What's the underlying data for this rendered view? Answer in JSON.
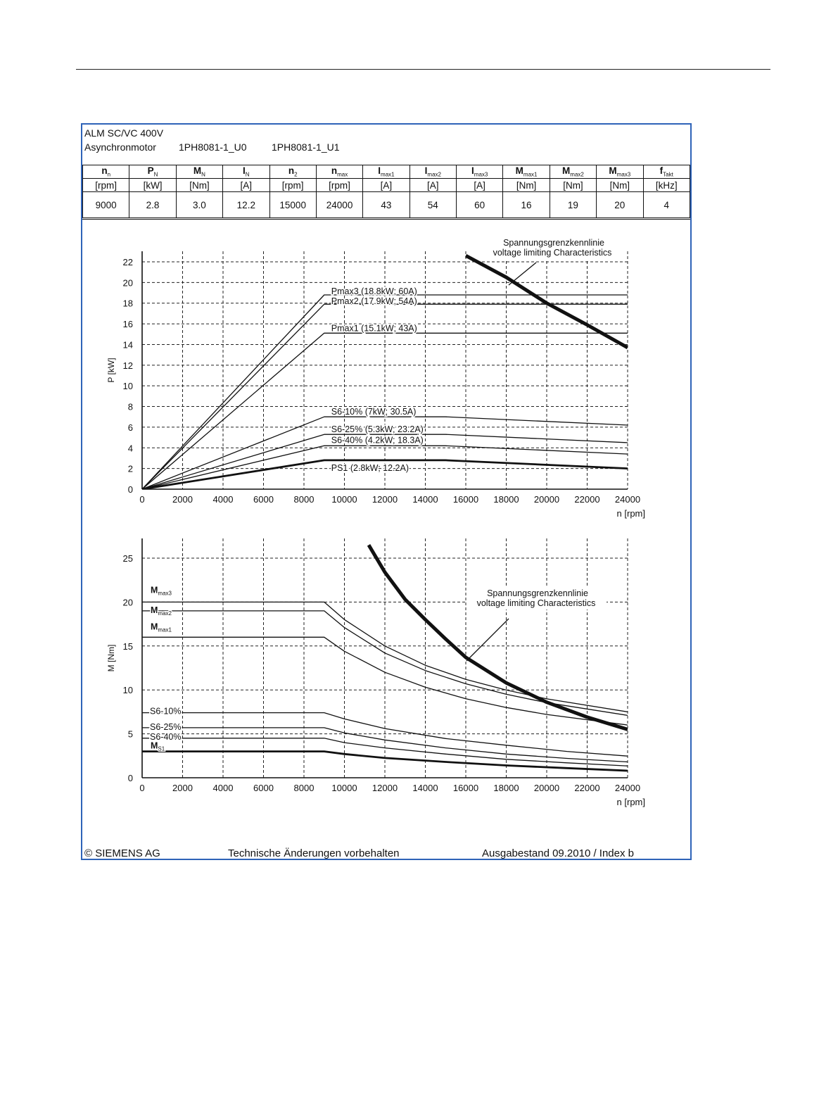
{
  "header": {
    "line1": "ALM SC/VC 400V",
    "motor_type": "Asynchronmotor",
    "model_a": "1PH8081-1_U0",
    "model_b": "1PH8081-1_U1"
  },
  "spec_table": {
    "columns": [
      {
        "sym": "n",
        "sub": "n",
        "unit": "[rpm]",
        "value": "9000"
      },
      {
        "sym": "P",
        "sub": "N",
        "unit": "[kW]",
        "value": "2.8"
      },
      {
        "sym": "M",
        "sub": "N",
        "unit": "[Nm]",
        "value": "3.0"
      },
      {
        "sym": "I",
        "sub": "N",
        "unit": "[A]",
        "value": "12.2"
      },
      {
        "sym": "n",
        "sub": "2",
        "unit": "[rpm]",
        "value": "15000"
      },
      {
        "sym": "n",
        "sub": "max",
        "unit": "[rpm]",
        "value": "24000"
      },
      {
        "sym": "I",
        "sub": "max1",
        "unit": "[A]",
        "value": "43"
      },
      {
        "sym": "I",
        "sub": "max2",
        "unit": "[A]",
        "value": "54"
      },
      {
        "sym": "I",
        "sub": "max3",
        "unit": "[A]",
        "value": "60"
      },
      {
        "sym": "M",
        "sub": "max1",
        "unit": "[Nm]",
        "value": "16"
      },
      {
        "sym": "M",
        "sub": "max2",
        "unit": "[Nm]",
        "value": "19"
      },
      {
        "sym": "M",
        "sub": "max3",
        "unit": "[Nm]",
        "value": "20"
      },
      {
        "sym": "f",
        "sub": "Takt",
        "unit": "[kHz]",
        "value": "4"
      }
    ]
  },
  "chart_data": [
    {
      "type": "line",
      "xlabel": "n [rpm]",
      "ylabel": "P [kW]",
      "xlim": [
        0,
        24000
      ],
      "ylim": [
        0,
        22
      ],
      "x_ticks": [
        0,
        2000,
        4000,
        6000,
        8000,
        10000,
        12000,
        14000,
        16000,
        18000,
        20000,
        22000,
        24000
      ],
      "y_ticks": [
        0,
        2,
        4,
        6,
        8,
        10,
        12,
        14,
        16,
        18,
        20,
        22
      ],
      "grid": true,
      "callout": {
        "line1": "Spannungsgrenzkennlinie",
        "line2": "voltage limiting  Characteristics"
      },
      "series": [
        {
          "name": "Pmax3  (18.8kW; 60A)",
          "weight": "thin",
          "points": [
            [
              0,
              0
            ],
            [
              9000,
              18.8
            ],
            [
              24000,
              18.8
            ]
          ]
        },
        {
          "name": "Pmax2  (17.9kW; 54A)",
          "weight": "thin",
          "points": [
            [
              0,
              0
            ],
            [
              9000,
              17.9
            ],
            [
              24000,
              17.9
            ]
          ]
        },
        {
          "name": "Pmax1  (15.1kW; 43A)",
          "weight": "thin",
          "points": [
            [
              0,
              0
            ],
            [
              9000,
              15.1
            ],
            [
              24000,
              15.1
            ]
          ]
        },
        {
          "name": "S6-10% (7kW; 30.5A)",
          "weight": "thin",
          "points": [
            [
              0,
              0
            ],
            [
              9000,
              7.0
            ],
            [
              15000,
              7.0
            ],
            [
              24000,
              6.2
            ]
          ]
        },
        {
          "name": "S6-25% (5.3kW; 23.2A)",
          "weight": "thin",
          "points": [
            [
              0,
              0
            ],
            [
              9000,
              5.3
            ],
            [
              15000,
              5.3
            ],
            [
              24000,
              4.5
            ]
          ]
        },
        {
          "name": "S6-40% (4.2kW; 18.3A)",
          "weight": "thin",
          "points": [
            [
              0,
              0
            ],
            [
              9000,
              4.2
            ],
            [
              15000,
              4.2
            ],
            [
              24000,
              3.4
            ]
          ]
        },
        {
          "name": "PS1  (2.8kW; 12.2A)",
          "weight": "bold",
          "points": [
            [
              0,
              0
            ],
            [
              9000,
              2.8
            ],
            [
              15000,
              2.8
            ],
            [
              24000,
              2.0
            ]
          ]
        },
        {
          "name": "",
          "weight": "heavy",
          "points": [
            [
              16000,
              22.6
            ],
            [
              18000,
              20.5
            ],
            [
              20000,
              18.0
            ],
            [
              22000,
              15.9
            ],
            [
              24000,
              13.7
            ]
          ]
        }
      ]
    },
    {
      "type": "line",
      "xlabel": "n [rpm]",
      "ylabel": "M [Nm]",
      "xlim": [
        0,
        24000
      ],
      "ylim": [
        0,
        26
      ],
      "x_ticks": [
        0,
        2000,
        4000,
        6000,
        8000,
        10000,
        12000,
        14000,
        16000,
        18000,
        20000,
        22000,
        24000
      ],
      "y_ticks": [
        0,
        5,
        10,
        15,
        20,
        25
      ],
      "grid": true,
      "callout": {
        "line1": "Spannungsgrenzkennlinie",
        "line2": "voltage limiting  Characteristics"
      },
      "labels": [
        {
          "main": "M",
          "sub": "max3"
        },
        {
          "main": "M",
          "sub": "max2"
        },
        {
          "main": "M",
          "sub": "max1"
        },
        {
          "main": "S6-10%",
          "sub": ""
        },
        {
          "main": "S6-25%",
          "sub": ""
        },
        {
          "main": "S6-40%",
          "sub": ""
        },
        {
          "main": "M",
          "sub": "S1"
        }
      ],
      "series": [
        {
          "name": "Mmax3",
          "weight": "thin",
          "points": [
            [
              0,
              20
            ],
            [
              9000,
              20
            ],
            [
              10000,
              18
            ],
            [
              12000,
              15
            ],
            [
              14000,
              12.8
            ],
            [
              16000,
              11.2
            ],
            [
              18000,
              9.98
            ],
            [
              20000,
              8.98
            ],
            [
              24000,
              7.5
            ]
          ]
        },
        {
          "name": "Mmax2",
          "weight": "thin",
          "points": [
            [
              0,
              19
            ],
            [
              9000,
              19
            ],
            [
              10000,
              17.1
            ],
            [
              12000,
              14.2
            ],
            [
              14000,
              12.2
            ],
            [
              16000,
              10.7
            ],
            [
              18000,
              9.5
            ],
            [
              20000,
              8.55
            ],
            [
              24000,
              7.1
            ]
          ]
        },
        {
          "name": "Mmax1",
          "weight": "thin",
          "points": [
            [
              0,
              16
            ],
            [
              9000,
              16
            ],
            [
              10000,
              14.4
            ],
            [
              12000,
              12
            ],
            [
              14000,
              10.3
            ],
            [
              16000,
              9.0
            ],
            [
              18000,
              8.0
            ],
            [
              20000,
              7.2
            ],
            [
              24000,
              6.0
            ]
          ]
        },
        {
          "name": "S6-10%",
          "weight": "thin",
          "points": [
            [
              0,
              7.4
            ],
            [
              9000,
              7.4
            ],
            [
              10000,
              6.7
            ],
            [
              12000,
              5.6
            ],
            [
              15000,
              4.46
            ],
            [
              18000,
              3.7
            ],
            [
              21000,
              3.0
            ],
            [
              24000,
              2.47
            ]
          ]
        },
        {
          "name": "S6-25%",
          "weight": "thin",
          "points": [
            [
              0,
              5.7
            ],
            [
              9000,
              5.7
            ],
            [
              10000,
              5.1
            ],
            [
              12000,
              4.3
            ],
            [
              15000,
              3.4
            ],
            [
              18000,
              2.7
            ],
            [
              21000,
              2.2
            ],
            [
              24000,
              1.8
            ]
          ]
        },
        {
          "name": "S6-40%",
          "weight": "thin",
          "points": [
            [
              0,
              4.5
            ],
            [
              9000,
              4.5
            ],
            [
              10000,
              4.0
            ],
            [
              12000,
              3.4
            ],
            [
              15000,
              2.7
            ],
            [
              18000,
              2.1
            ],
            [
              21000,
              1.7
            ],
            [
              24000,
              1.35
            ]
          ]
        },
        {
          "name": "MS1",
          "weight": "bold",
          "points": [
            [
              0,
              3.0
            ],
            [
              9000,
              3.0
            ],
            [
              10000,
              2.7
            ],
            [
              12000,
              2.25
            ],
            [
              15000,
              1.8
            ],
            [
              18000,
              1.4
            ],
            [
              21000,
              1.1
            ],
            [
              24000,
              0.8
            ]
          ]
        },
        {
          "name": "",
          "weight": "heavy",
          "points": [
            [
              11200,
              26.5
            ],
            [
              12000,
              23.4
            ],
            [
              13000,
              20.3
            ],
            [
              14000,
              18.0
            ],
            [
              15000,
              15.8
            ],
            [
              16000,
              13.7
            ],
            [
              18000,
              10.8
            ],
            [
              20000,
              8.6
            ],
            [
              22000,
              6.9
            ],
            [
              24000,
              5.5
            ]
          ]
        }
      ]
    }
  ],
  "footer": {
    "copyright": "© SIEMENS AG",
    "notice": "Technische Änderungen vorbehalten",
    "edition": "Ausgabestand 09.2010 / Index b"
  }
}
